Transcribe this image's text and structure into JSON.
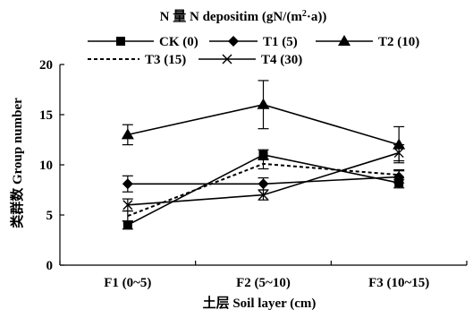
{
  "chart_data": {
    "type": "line",
    "legend_title": "N 量 N depositim (gN/(m²·a))",
    "legend_title_parts": {
      "main": "N 量 N depositim (gN/(m",
      "sup": "2",
      "tail": "·a))"
    },
    "xlabel": "土层 Soil layer (cm)",
    "ylabel": "类群数 Group number",
    "categories": [
      "F1 (0~5)",
      "F2 (5~10)",
      "F3 (10~15)"
    ],
    "ylim": [
      0,
      20
    ],
    "yticks": [
      "0",
      "5",
      "10",
      "15",
      "20"
    ],
    "grid": false,
    "legend_position": "top",
    "series": [
      {
        "name": "CK (0)",
        "values": [
          4.0,
          11.0,
          8.2
        ],
        "errors": [
          0.4,
          0.5,
          0.5
        ],
        "marker": "square",
        "line": "solid",
        "color": "#000000"
      },
      {
        "name": "T1 (5)",
        "values": [
          8.1,
          8.1,
          8.8
        ],
        "errors": [
          0.8,
          0.6,
          0.6
        ],
        "marker": "diamond",
        "line": "solid",
        "color": "#000000"
      },
      {
        "name": "T2 (10)",
        "values": [
          13.0,
          16.0,
          12.0
        ],
        "errors": [
          1.0,
          2.4,
          1.8
        ],
        "marker": "triangle",
        "line": "solid",
        "color": "#000000"
      },
      {
        "name": "T3 (15)",
        "values": [
          4.9,
          10.1,
          9.0
        ],
        "errors": [
          0.5,
          0.5,
          0.5
        ],
        "marker": "none",
        "line": "dashed",
        "color": "#000000"
      },
      {
        "name": "T4 (30)",
        "values": [
          6.0,
          7.0,
          11.2
        ],
        "errors": [
          0.6,
          0.5,
          0.8
        ],
        "marker": "x",
        "line": "solid",
        "color": "#000000"
      }
    ]
  }
}
